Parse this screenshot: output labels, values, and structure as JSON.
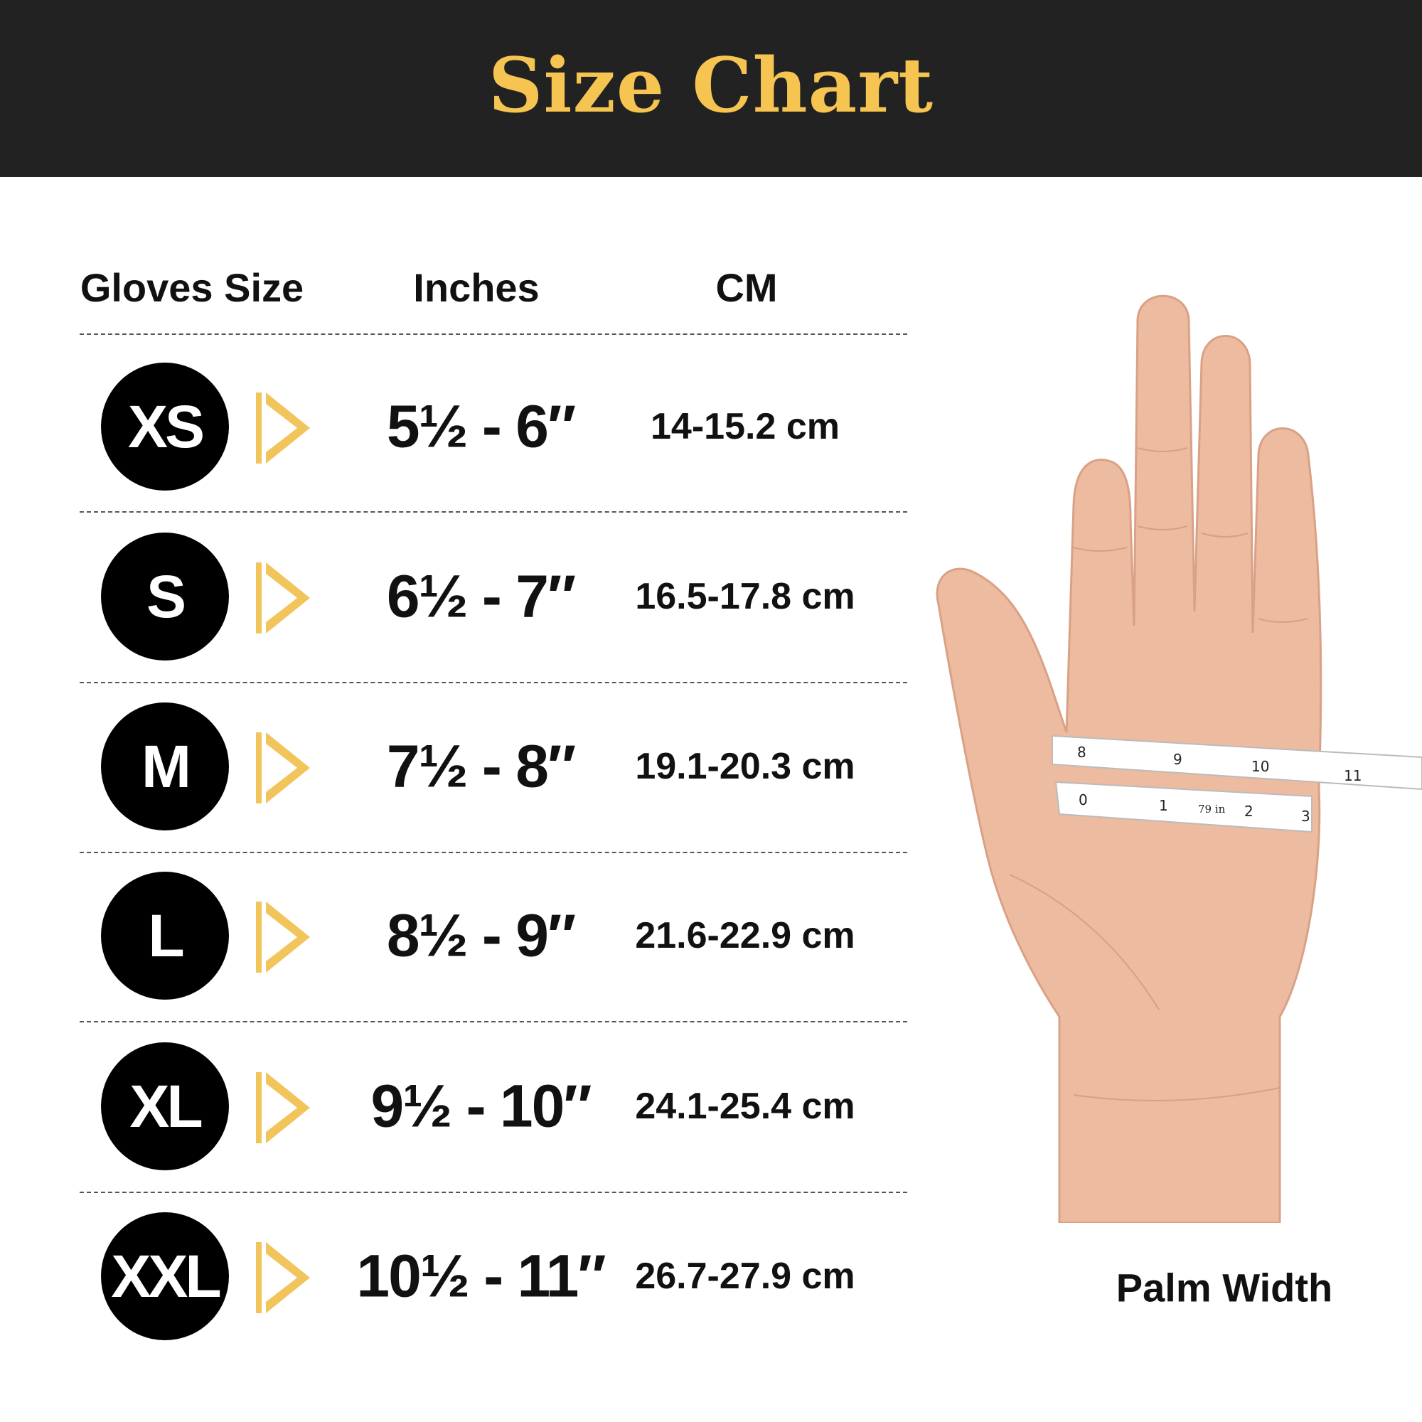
{
  "header": {
    "title": "Size Chart",
    "title_color": "#F5C451",
    "background": "#222222"
  },
  "columns": [
    "Gloves Size",
    "Inches",
    "CM"
  ],
  "rows": [
    {
      "size": "XS",
      "inches": "5½ - 6″",
      "cm": "14-15.2 cm"
    },
    {
      "size": "S",
      "inches": "6½ - 7″",
      "cm": "16.5-17.8 cm"
    },
    {
      "size": "M",
      "inches": "7½ - 8″",
      "cm": "19.1-20.3 cm"
    },
    {
      "size": "L",
      "inches": "8½ - 9″",
      "cm": "21.6-22.9 cm"
    },
    {
      "size": "XL",
      "inches": "9½ - 10″",
      "cm": "24.1-25.4 cm"
    },
    {
      "size": "XXL",
      "inches": "10½ - 11″",
      "cm": "26.7-27.9 cm"
    }
  ],
  "arrow_color": "#F2C55C",
  "hand": {
    "tape_labels": [
      "8",
      "9",
      "10",
      "11",
      "0",
      "1",
      "79 in",
      "2",
      "3"
    ]
  },
  "caption": "Palm Width"
}
